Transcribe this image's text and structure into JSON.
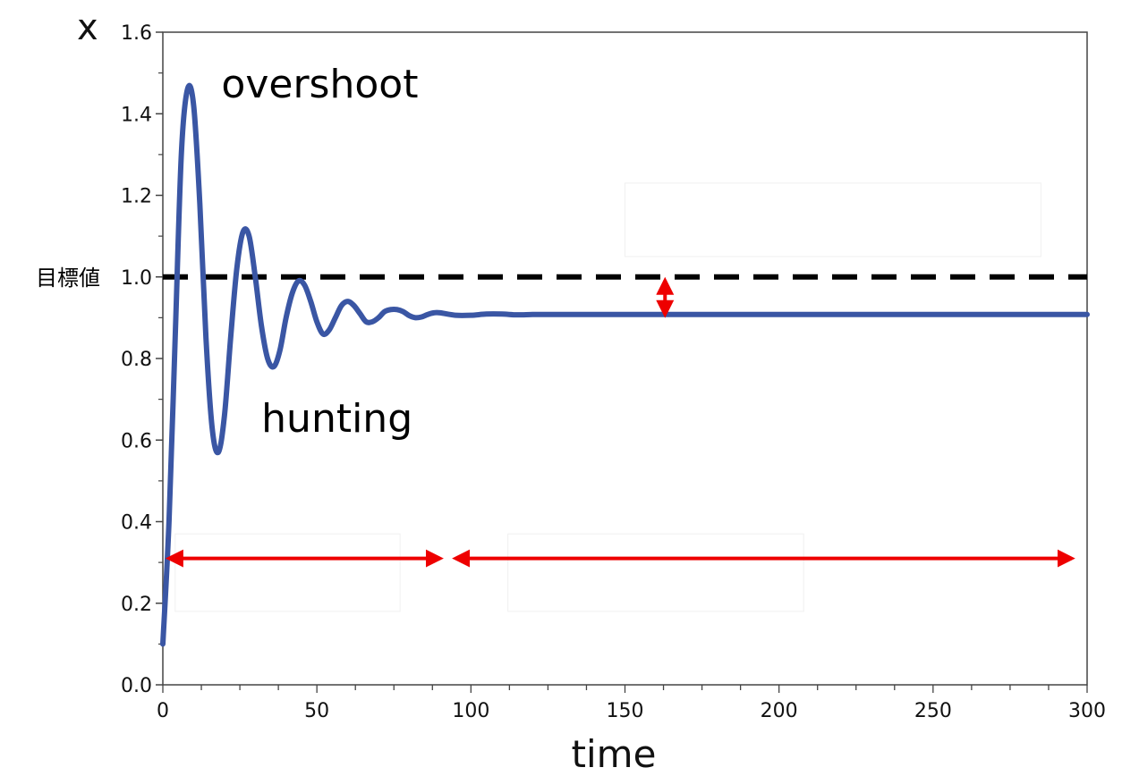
{
  "chart_data": {
    "type": "line",
    "title": "",
    "xlabel": "time",
    "ylabel": "x",
    "xlim": [
      0,
      300
    ],
    "ylim": [
      0.0,
      1.6
    ],
    "x_major_ticks": [
      0,
      50,
      100,
      150,
      200,
      250,
      300
    ],
    "x_minor_step": 12.5,
    "y_major_ticks": [
      0.0,
      0.2,
      0.4,
      0.6,
      0.8,
      1.0,
      1.2,
      1.4,
      1.6
    ],
    "y_tick_labels": [
      "0.0",
      "0.2",
      "0.4",
      "0.6",
      "0.8",
      "1.0",
      "1.2",
      "1.4",
      "1.6"
    ],
    "x_tick_labels": [
      "0",
      "50",
      "100",
      "150",
      "200",
      "250",
      "300"
    ],
    "grid": false,
    "reference_line": {
      "y": 1.0,
      "label": "目標値",
      "style": "dashed",
      "color": "#000000"
    },
    "series": [
      {
        "color": "#3a56a4",
        "x": [
          0,
          2,
          4,
          6,
          8,
          10,
          12,
          14,
          16,
          18,
          20,
          22,
          24,
          26,
          28,
          30,
          32,
          34,
          36,
          38,
          40,
          42,
          44,
          46,
          48,
          50,
          52,
          54,
          56,
          58,
          60,
          62,
          64,
          66,
          68,
          70,
          72,
          74,
          76,
          78,
          80,
          82,
          84,
          86,
          88,
          90,
          95,
          100,
          105,
          110,
          115,
          120,
          125,
          130,
          140,
          150,
          175,
          200,
          250,
          300
        ],
        "y": [
          0.1,
          0.4,
          0.85,
          1.3,
          1.46,
          1.42,
          1.18,
          0.85,
          0.63,
          0.57,
          0.66,
          0.85,
          1.02,
          1.11,
          1.1,
          1.0,
          0.88,
          0.8,
          0.78,
          0.82,
          0.9,
          0.96,
          0.99,
          0.98,
          0.94,
          0.89,
          0.86,
          0.87,
          0.9,
          0.93,
          0.94,
          0.93,
          0.91,
          0.89,
          0.89,
          0.9,
          0.915,
          0.92,
          0.92,
          0.915,
          0.905,
          0.9,
          0.902,
          0.908,
          0.912,
          0.912,
          0.906,
          0.906,
          0.909,
          0.909,
          0.907,
          0.908,
          0.908,
          0.908,
          0.908,
          0.908,
          0.908,
          0.908,
          0.908,
          0.908
        ]
      }
    ],
    "annotations": [
      {
        "text": "overshoot",
        "x": 19,
        "y": 1.44
      },
      {
        "text": "hunting",
        "x": 32,
        "y": 0.62
      }
    ],
    "ranges": [
      {
        "x_start": 2,
        "x_end": 90,
        "y": 0.31,
        "color": "#ee0000"
      },
      {
        "x_start": 95,
        "x_end": 295,
        "y": 0.31,
        "color": "#ee0000"
      }
    ],
    "offset_arrow": {
      "x": 163,
      "y_top": 1.0,
      "y_bottom": 0.908,
      "color": "#ee0000"
    },
    "masked_boxes": [
      {
        "x0": 150,
        "x1": 285,
        "y0": 1.05,
        "y1": 1.23
      },
      {
        "x0": 4,
        "x1": 77,
        "y0": 0.18,
        "y1": 0.37
      },
      {
        "x0": 112,
        "x1": 208,
        "y0": 0.18,
        "y1": 0.37
      }
    ]
  }
}
